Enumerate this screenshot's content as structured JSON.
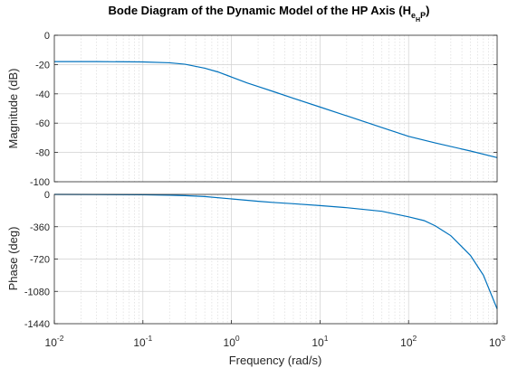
{
  "chart_data": [
    {
      "type": "line",
      "panel": "magnitude",
      "title": "Bode Diagram of the Dynamic Model of the HP Axis (H",
      "title_sub": [
        "e",
        "H",
        "P"
      ],
      "title_close": ")",
      "ylabel": "Magnitude (dB)",
      "xscale": "log",
      "xlim": [
        0.01,
        1000
      ],
      "ylim": [
        -100,
        0
      ],
      "yticks": [
        "0",
        "-20",
        "-40",
        "-60",
        "-80",
        "-100"
      ],
      "grid": true,
      "series": [
        {
          "color": "#0072BD",
          "x": [
            0.01,
            0.03,
            0.1,
            0.2,
            0.3,
            0.5,
            0.7,
            1,
            1.5,
            2,
            3,
            5,
            10,
            20,
            50,
            100,
            200,
            500,
            1000
          ],
          "y": [
            -18,
            -18,
            -18.2,
            -18.8,
            -19.8,
            -22.5,
            -25,
            -28.5,
            -32.5,
            -35,
            -38.5,
            -43,
            -49,
            -55,
            -63,
            -69,
            -73.5,
            -79,
            -83.5
          ]
        }
      ]
    },
    {
      "type": "line",
      "panel": "phase",
      "xlabel": "Frequency  (rad/s)",
      "ylabel": "Phase (deg)",
      "xscale": "log",
      "xlim": [
        0.01,
        1000
      ],
      "ylim": [
        -1440,
        0
      ],
      "xticks": [
        {
          "base": "10",
          "exp": "-2"
        },
        {
          "base": "10",
          "exp": "-1"
        },
        {
          "base": "10",
          "exp": "0"
        },
        {
          "base": "10",
          "exp": "1"
        },
        {
          "base": "10",
          "exp": "2"
        },
        {
          "base": "10",
          "exp": "3"
        }
      ],
      "yticks": [
        "0",
        "-360",
        "-720",
        "-1080",
        "-1440"
      ],
      "grid": true,
      "series": [
        {
          "color": "#0072BD",
          "x": [
            0.01,
            0.03,
            0.1,
            0.2,
            0.3,
            0.5,
            1,
            2,
            3,
            5,
            10,
            20,
            50,
            100,
            150,
            200,
            300,
            500,
            700,
            1000
          ],
          "y": [
            0,
            -1,
            -4,
            -9,
            -14,
            -24,
            -50,
            -77,
            -90,
            -104,
            -125,
            -148,
            -188,
            -250,
            -292,
            -350,
            -460,
            -680,
            -900,
            -1275
          ]
        }
      ]
    }
  ]
}
